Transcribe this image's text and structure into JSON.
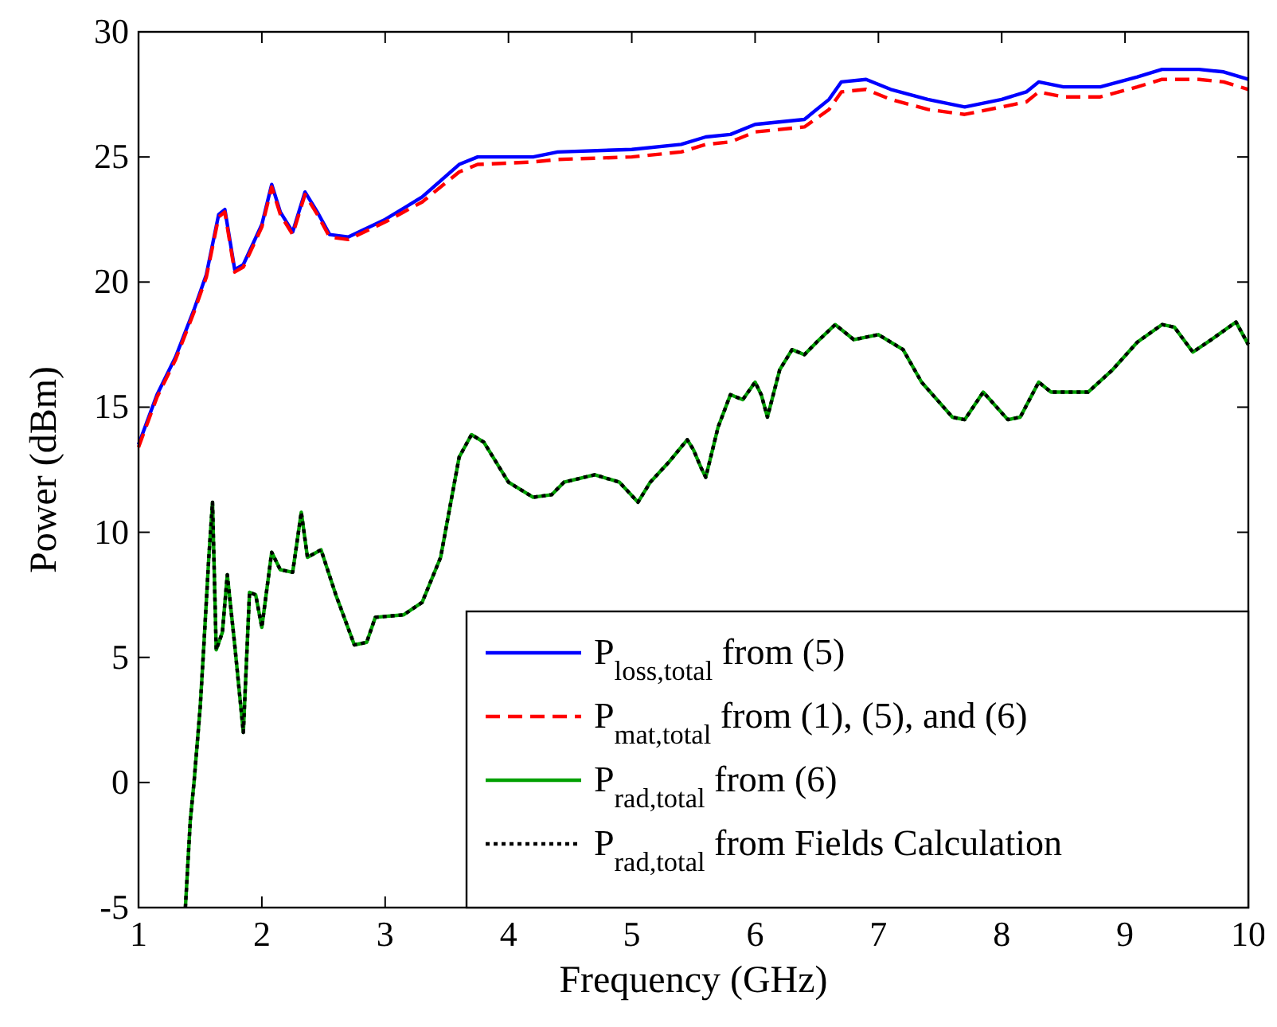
{
  "chart_data": {
    "type": "line",
    "xlabel": "Frequency (GHz)",
    "ylabel": "Power (dBm)",
    "xlim": [
      1,
      10
    ],
    "ylim": [
      -5,
      30
    ],
    "xticks": [
      1,
      2,
      3,
      4,
      5,
      6,
      7,
      8,
      9,
      10
    ],
    "yticks": [
      -5,
      0,
      5,
      10,
      15,
      20,
      25,
      30
    ],
    "grid": false,
    "legend": "bottom right",
    "marker": "none",
    "series": [
      {
        "name": "P$_{loss,total}$ from (5)",
        "color": "#0000ff",
        "line_style": "solid",
        "x": [
          1.0,
          1.15,
          1.3,
          1.45,
          1.55,
          1.65,
          1.7,
          1.78,
          1.85,
          2.0,
          2.08,
          2.15,
          2.25,
          2.35,
          2.45,
          2.55,
          2.7,
          3.0,
          3.3,
          3.6,
          3.75,
          4.2,
          4.4,
          5.0,
          5.4,
          5.6,
          5.8,
          6.0,
          6.4,
          6.6,
          6.7,
          6.9,
          7.1,
          7.4,
          7.7,
          8.0,
          8.2,
          8.3,
          8.5,
          8.8,
          9.1,
          9.3,
          9.6,
          9.8,
          10.0
        ],
        "values": [
          13.5,
          15.5,
          17,
          18.9,
          20.3,
          22.7,
          22.9,
          20.5,
          20.7,
          22.3,
          23.9,
          22.8,
          22.0,
          23.6,
          22.8,
          21.9,
          21.8,
          22.5,
          23.4,
          24.7,
          25.0,
          25.0,
          25.2,
          25.3,
          25.5,
          25.8,
          25.9,
          26.3,
          26.5,
          27.3,
          28.0,
          28.1,
          27.7,
          27.3,
          27.0,
          27.3,
          27.6,
          28.0,
          27.8,
          27.8,
          28.2,
          28.5,
          28.5,
          28.4,
          28.1
        ]
      },
      {
        "name": "P$_{mat,total}$ from (1), (5), and (6)",
        "color": "#ff0000",
        "line_style": "dashed",
        "x": [
          1.0,
          1.15,
          1.3,
          1.45,
          1.55,
          1.65,
          1.7,
          1.78,
          1.85,
          2.0,
          2.08,
          2.15,
          2.25,
          2.35,
          2.45,
          2.55,
          2.7,
          3.0,
          3.3,
          3.6,
          3.75,
          4.2,
          4.4,
          5.0,
          5.4,
          5.6,
          5.8,
          6.0,
          6.4,
          6.6,
          6.7,
          6.9,
          7.1,
          7.4,
          7.7,
          8.0,
          8.2,
          8.3,
          8.5,
          8.8,
          9.1,
          9.3,
          9.6,
          9.8,
          10.0
        ],
        "values": [
          13.4,
          15.4,
          16.9,
          18.8,
          20.2,
          22.6,
          22.8,
          20.4,
          20.6,
          22.2,
          23.8,
          22.7,
          21.9,
          23.5,
          22.7,
          21.8,
          21.7,
          22.4,
          23.2,
          24.4,
          24.7,
          24.8,
          24.9,
          25.0,
          25.2,
          25.5,
          25.6,
          26.0,
          26.2,
          26.9,
          27.6,
          27.7,
          27.3,
          26.9,
          26.7,
          27.0,
          27.2,
          27.6,
          27.4,
          27.4,
          27.8,
          28.1,
          28.1,
          28.0,
          27.7
        ]
      },
      {
        "name": "P$_{rad,total}$ from (6)",
        "color": "#00a000",
        "line_style": "solid",
        "x": [
          1.38,
          1.42,
          1.45,
          1.5,
          1.53,
          1.57,
          1.6,
          1.63,
          1.68,
          1.72,
          1.78,
          1.85,
          1.9,
          1.95,
          2.0,
          2.08,
          2.15,
          2.25,
          2.32,
          2.37,
          2.48,
          2.6,
          2.75,
          2.85,
          2.92,
          3.15,
          3.3,
          3.45,
          3.6,
          3.7,
          3.8,
          4.0,
          4.2,
          4.35,
          4.45,
          4.7,
          4.9,
          5.05,
          5.15,
          5.3,
          5.45,
          5.5,
          5.56,
          5.6,
          5.7,
          5.8,
          5.9,
          6.0,
          6.05,
          6.1,
          6.2,
          6.3,
          6.4,
          6.5,
          6.65,
          6.8,
          7.0,
          7.2,
          7.35,
          7.6,
          7.7,
          7.85,
          8.05,
          8.15,
          8.3,
          8.4,
          8.7,
          8.9,
          9.1,
          9.3,
          9.4,
          9.55,
          9.7,
          9.9,
          10.0
        ],
        "values": [
          -5,
          -1.5,
          0,
          3,
          5.5,
          9,
          11.2,
          5.3,
          6,
          8.3,
          5.5,
          2.0,
          7.6,
          7.5,
          6.2,
          9.2,
          8.5,
          8.4,
          10.8,
          9.0,
          9.3,
          7.5,
          5.5,
          5.6,
          6.6,
          6.7,
          7.2,
          9.0,
          13.0,
          13.9,
          13.6,
          12.0,
          11.4,
          11.5,
          12.0,
          12.3,
          12.0,
          11.2,
          12.0,
          12.8,
          13.7,
          13.3,
          12.6,
          12.2,
          14.2,
          15.5,
          15.3,
          16.0,
          15.5,
          14.6,
          16.5,
          17.3,
          17.1,
          17.6,
          18.3,
          17.7,
          17.9,
          17.3,
          16.0,
          14.6,
          14.5,
          15.6,
          14.5,
          14.6,
          16.0,
          15.6,
          15.6,
          16.5,
          17.6,
          18.3,
          18.2,
          17.2,
          17.7,
          18.4,
          17.5
        ]
      },
      {
        "name": "P$_{rad,total}$ from Fields Calculation",
        "color": "#000000",
        "line_style": "dotted",
        "x": [
          1.38,
          1.42,
          1.45,
          1.5,
          1.53,
          1.57,
          1.6,
          1.63,
          1.68,
          1.72,
          1.78,
          1.85,
          1.9,
          1.95,
          2.0,
          2.08,
          2.15,
          2.25,
          2.32,
          2.37,
          2.48,
          2.6,
          2.75,
          2.85,
          2.92,
          3.15,
          3.3,
          3.45,
          3.6,
          3.7,
          3.8,
          4.0,
          4.2,
          4.35,
          4.45,
          4.7,
          4.9,
          5.05,
          5.15,
          5.3,
          5.45,
          5.5,
          5.56,
          5.6,
          5.7,
          5.8,
          5.9,
          6.0,
          6.05,
          6.1,
          6.2,
          6.3,
          6.4,
          6.5,
          6.65,
          6.8,
          7.0,
          7.2,
          7.35,
          7.6,
          7.7,
          7.85,
          8.05,
          8.15,
          8.3,
          8.4,
          8.7,
          8.9,
          9.1,
          9.3,
          9.4,
          9.55,
          9.7,
          9.9,
          10.0
        ],
        "values": [
          -5,
          -1.5,
          0,
          3,
          5.5,
          9,
          11.2,
          5.3,
          6,
          8.3,
          5.5,
          2.0,
          7.6,
          7.5,
          6.2,
          9.2,
          8.5,
          8.4,
          10.8,
          9.0,
          9.3,
          7.5,
          5.5,
          5.6,
          6.6,
          6.7,
          7.2,
          9.0,
          13.0,
          13.9,
          13.6,
          12.0,
          11.4,
          11.5,
          12.0,
          12.3,
          12.0,
          11.2,
          12.0,
          12.8,
          13.7,
          13.3,
          12.6,
          12.2,
          14.2,
          15.5,
          15.3,
          16.0,
          15.5,
          14.6,
          16.5,
          17.3,
          17.1,
          17.6,
          18.3,
          17.7,
          17.9,
          17.3,
          16.0,
          14.6,
          14.5,
          15.6,
          14.5,
          14.6,
          16.0,
          15.6,
          15.6,
          16.5,
          17.6,
          18.3,
          18.2,
          17.2,
          17.7,
          18.4,
          17.5
        ]
      }
    ]
  }
}
